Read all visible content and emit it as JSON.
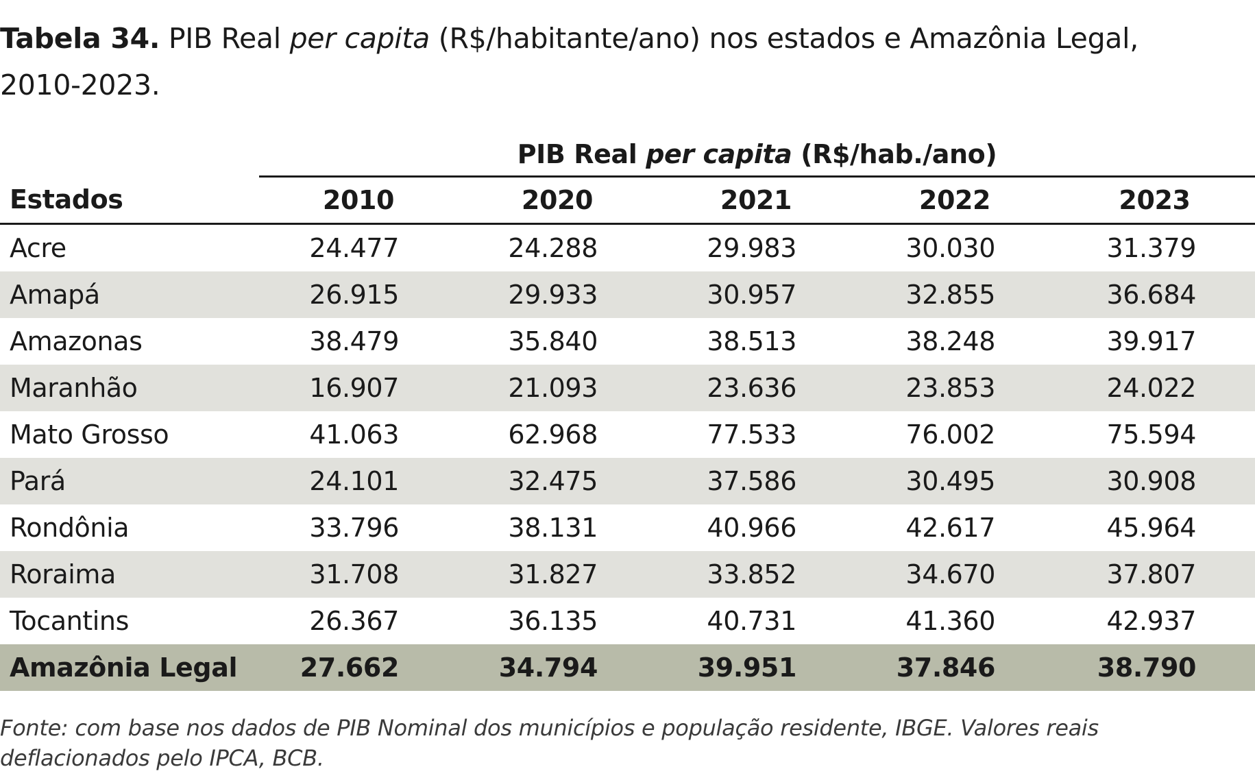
{
  "caption": {
    "label": "Tabela 34.",
    "text_before": " PIB Real  ",
    "text_italic": "per capita",
    "text_after": " (R$/habitante/ano) nos estados e Amazônia Legal, 2010-2023."
  },
  "table": {
    "group_header": {
      "before": "PIB Real ",
      "italic": "per capita",
      "after": " (R$/hab./ano)"
    },
    "col_estados": "Estados",
    "years": [
      "2010",
      "2020",
      "2021",
      "2022",
      "2023"
    ],
    "rows": [
      {
        "name": "Acre",
        "values": [
          "24.477",
          "24.288",
          "29.983",
          "30.030",
          "31.379"
        ]
      },
      {
        "name": "Amapá",
        "values": [
          "26.915",
          "29.933",
          "30.957",
          "32.855",
          "36.684"
        ]
      },
      {
        "name": "Amazonas",
        "values": [
          "38.479",
          "35.840",
          "38.513",
          "38.248",
          "39.917"
        ]
      },
      {
        "name": "Maranhão",
        "values": [
          "16.907",
          "21.093",
          "23.636",
          "23.853",
          "24.022"
        ]
      },
      {
        "name": "Mato Grosso",
        "values": [
          "41.063",
          "62.968",
          "77.533",
          "76.002",
          "75.594"
        ]
      },
      {
        "name": "Pará",
        "values": [
          "24.101",
          "32.475",
          "37.586",
          "30.495",
          "30.908"
        ]
      },
      {
        "name": "Rondônia",
        "values": [
          "33.796",
          "38.131",
          "40.966",
          "42.617",
          "45.964"
        ]
      },
      {
        "name": "Roraima",
        "values": [
          "31.708",
          "31.827",
          "33.852",
          "34.670",
          "37.807"
        ]
      },
      {
        "name": "Tocantins",
        "values": [
          "26.367",
          "36.135",
          "40.731",
          "41.360",
          "42.937"
        ]
      }
    ],
    "total": {
      "name": "Amazônia Legal",
      "values": [
        "27.662",
        "34.794",
        "39.951",
        "37.846",
        "38.790"
      ]
    }
  },
  "source": "Fonte: com base nos dados de PIB Nominal dos municípios e população residente, IBGE. Valores reais deflacionados pelo IPCA, BCB.",
  "colors": {
    "stripe": "#e1e1dc",
    "total_row": "#b8bba9",
    "text": "#1a1a1a"
  }
}
